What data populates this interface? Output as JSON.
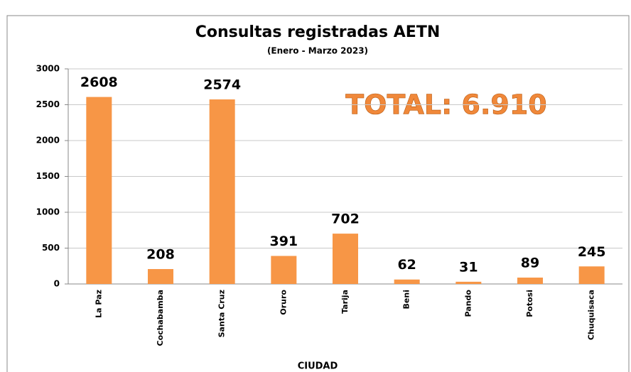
{
  "chart_data": {
    "type": "bar",
    "title": "Consultas registradas AETN",
    "subtitle": "(Enero - Marzo 2023)",
    "annotation": "TOTAL: 6.910",
    "x_label": "CIUDAD",
    "categories": [
      "La Paz",
      "Cochabamba",
      "Santa Cruz",
      "Oruro",
      "Tarija",
      "Beni",
      "Pando",
      "Potosi",
      "Chuquisaca"
    ],
    "values": [
      2608,
      208,
      2574,
      391,
      702,
      62,
      31,
      89,
      245
    ],
    "color": "#f79646",
    "ylim": [
      0,
      3000
    ],
    "yticks": [
      0,
      500,
      1000,
      1500,
      2000,
      2500,
      3000
    ],
    "grid": true
  }
}
